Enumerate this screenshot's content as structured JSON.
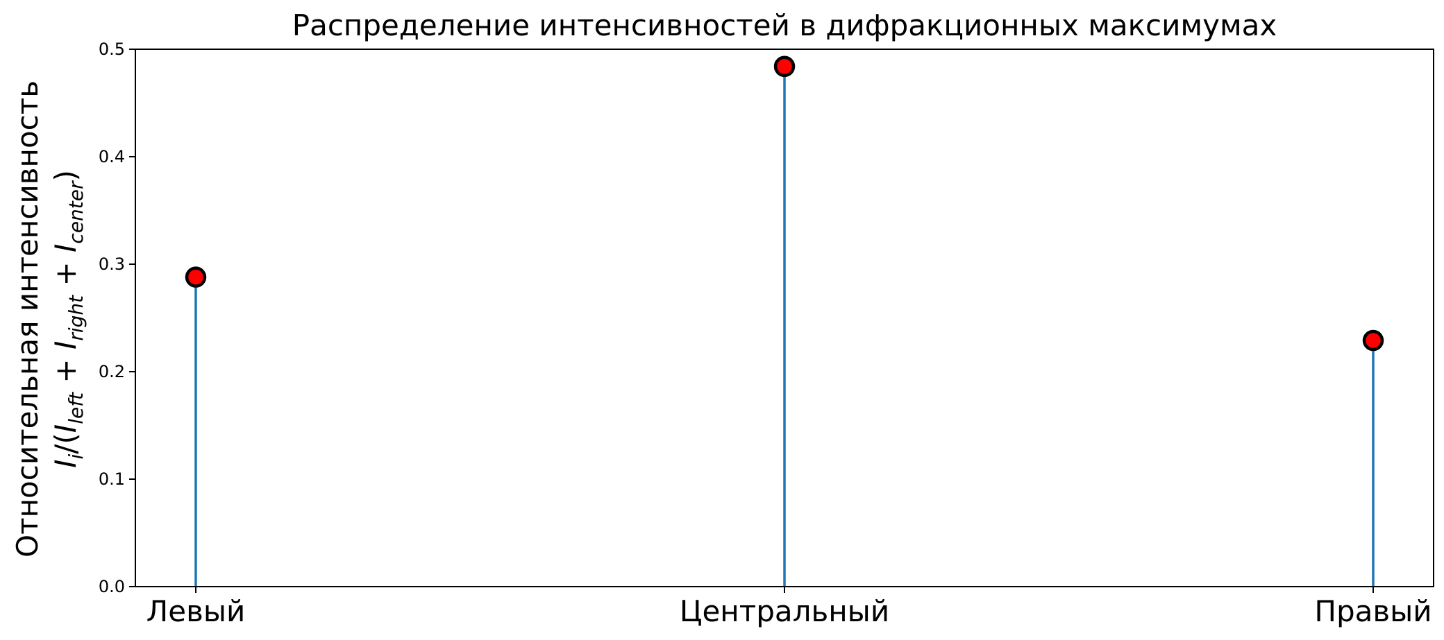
{
  "chart_data": {
    "type": "stem",
    "title": "Распределение интенсивностей в дифракционных максимумах",
    "ylabel_line1": "Относительная интенсивность",
    "ylabel_line2": {
      "prefix": "I",
      "prefix_sub": "i",
      "open": "/(",
      "term1": "I",
      "term1_sub": "left",
      "plus1": " + ",
      "term2": "I",
      "term2_sub": "right",
      "plus2": " + ",
      "term3": "I",
      "term3_sub": "center",
      "close": ")"
    },
    "xlabel": "",
    "categories": [
      "Левый",
      "Центральный",
      "Правый"
    ],
    "values": [
      0.288,
      0.484,
      0.229
    ],
    "ylim": [
      0,
      0.5
    ],
    "yticks": [
      "0.0",
      "0.1",
      "0.2",
      "0.3",
      "0.4",
      "0.5"
    ],
    "grid": false,
    "colors": {
      "stem": "#1f77b4",
      "marker_fill": "#ff0000",
      "marker_edge": "#000000"
    }
  }
}
